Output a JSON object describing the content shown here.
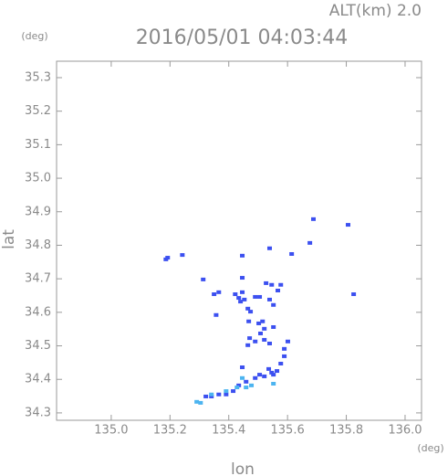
{
  "chart_data": {
    "type": "scatter",
    "title": "2016/05/01 04:03:44",
    "subtitle": "ALT(km) 2.0",
    "y_unit": "(deg)",
    "x_unit": "(deg)",
    "xlabel": "lon",
    "ylabel": "lat",
    "xlim": [
      134.814,
      136.056
    ],
    "ylim": [
      34.278,
      35.349
    ],
    "xticks": [
      {
        "value": 135.0,
        "label": "135.0"
      },
      135.2,
      135.4,
      135.6,
      135.8,
      {
        "value": 136.0,
        "label": "136.0"
      }
    ],
    "yticks": [
      35.3,
      35.2,
      35.1,
      {
        "value": 35.0,
        "label": "35.0"
      },
      34.9,
      34.8,
      34.7,
      34.6,
      34.5,
      34.4,
      34.3
    ],
    "series": [
      {
        "color": "#3c50f0",
        "x": [
          135.186,
          135.192,
          135.242,
          135.313,
          135.35,
          135.366,
          135.357,
          135.446,
          135.446,
          135.446,
          135.422,
          135.434,
          135.453,
          135.465,
          135.44,
          135.474,
          135.49,
          135.505,
          135.539,
          135.527,
          135.546,
          135.567,
          135.577,
          135.539,
          135.552,
          135.515,
          135.502,
          135.521,
          135.471,
          135.49,
          135.521,
          135.539,
          135.508,
          135.552,
          135.601,
          135.589,
          135.589,
          135.577,
          135.564,
          135.546,
          135.521,
          135.49,
          135.459,
          135.434,
          135.415,
          135.391,
          135.366,
          135.341,
          135.322,
          135.446,
          135.676,
          135.688,
          135.806,
          135.825,
          135.468,
          135.465,
          135.614,
          135.505,
          135.536,
          135.552
        ],
        "y": [
          34.758,
          34.763,
          34.771,
          34.698,
          34.654,
          34.66,
          34.592,
          34.769,
          34.703,
          34.66,
          34.654,
          34.643,
          34.638,
          34.611,
          34.632,
          34.602,
          34.646,
          34.646,
          34.791,
          34.687,
          34.682,
          34.665,
          34.682,
          34.638,
          34.622,
          34.573,
          34.567,
          34.551,
          34.523,
          34.513,
          34.518,
          34.507,
          34.537,
          34.556,
          34.513,
          34.491,
          34.469,
          34.447,
          34.425,
          34.42,
          34.409,
          34.404,
          34.393,
          34.382,
          34.365,
          34.355,
          34.355,
          34.349,
          34.349,
          34.436,
          34.807,
          34.878,
          34.861,
          34.654,
          34.573,
          34.502,
          34.774,
          34.414,
          34.431,
          34.414
        ]
      },
      {
        "color": "#4cb4f0",
        "x": [
          135.291,
          135.304,
          135.341,
          135.391,
          135.459,
          135.477,
          135.552,
          135.446,
          135.428
        ],
        "y": [
          34.333,
          34.33,
          34.355,
          34.365,
          34.376,
          34.382,
          34.387,
          34.404,
          34.376
        ]
      }
    ]
  }
}
